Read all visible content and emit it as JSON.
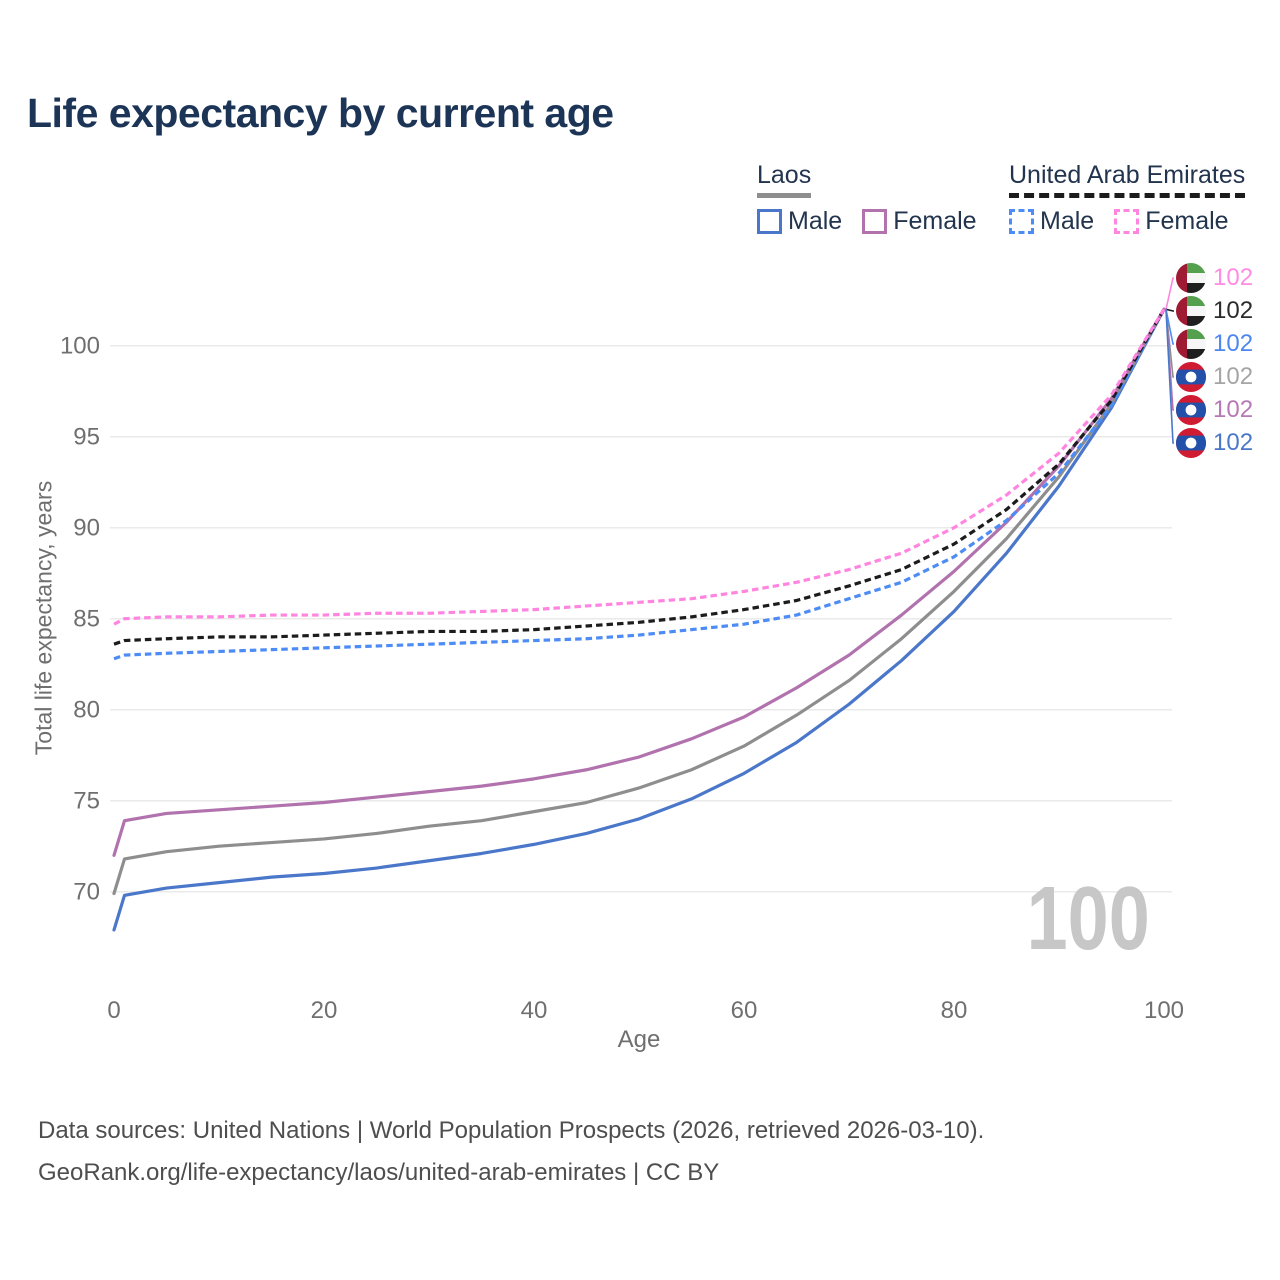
{
  "title": "Life expectancy by current age",
  "legend": {
    "groups": [
      {
        "id": "laos",
        "title": "Laos",
        "underline_color": "#8e8e8e",
        "underline_style": "solid",
        "items": [
          {
            "label": "Male",
            "color": "#4a77c9",
            "style": "solid"
          },
          {
            "label": "Female",
            "color": "#b172ae",
            "style": "solid"
          }
        ]
      },
      {
        "id": "uae",
        "title": "United Arab Emirates",
        "underline_color": "#1c1c1c",
        "underline_style": "dashed",
        "items": [
          {
            "label": "Male",
            "color": "#4d8bf5",
            "style": "dashed"
          },
          {
            "label": "Female",
            "color": "#ff85e0",
            "style": "dashed"
          }
        ]
      }
    ]
  },
  "chart_data": {
    "type": "line",
    "title": "Life expectancy by current age",
    "xlabel": "Age",
    "ylabel": "Total life expectancy, years",
    "x_ticks": [
      0,
      20,
      40,
      60,
      80,
      100
    ],
    "y_ticks": [
      70,
      75,
      80,
      85,
      90,
      95,
      100
    ],
    "xlim": [
      0,
      100
    ],
    "ylim": [
      66,
      103
    ],
    "grid": "horizontal",
    "legend_position": "top-right",
    "hover_age_label": "100",
    "ages": [
      0,
      1,
      5,
      10,
      15,
      20,
      25,
      30,
      35,
      40,
      45,
      50,
      55,
      60,
      65,
      70,
      75,
      80,
      85,
      90,
      95,
      100
    ],
    "series": [
      {
        "id": "laos-male",
        "name": "Laos Male",
        "country": "Laos",
        "sex": "Male",
        "color": "#4a77c9",
        "dash": false,
        "values": [
          67.9,
          69.8,
          70.2,
          70.5,
          70.8,
          71.0,
          71.3,
          71.7,
          72.1,
          72.6,
          73.2,
          74.0,
          75.1,
          76.5,
          78.2,
          80.3,
          82.7,
          85.4,
          88.6,
          92.3,
          96.6,
          102
        ]
      },
      {
        "id": "laos-both",
        "name": "Laos Both sexes",
        "country": "Laos",
        "sex": "Both sexes",
        "color": "#8e8e8e",
        "dash": false,
        "values": [
          69.9,
          71.8,
          72.2,
          72.5,
          72.7,
          72.9,
          73.2,
          73.6,
          73.9,
          74.4,
          74.9,
          75.7,
          76.7,
          78.0,
          79.7,
          81.6,
          83.9,
          86.5,
          89.4,
          92.8,
          96.8,
          102
        ]
      },
      {
        "id": "laos-female",
        "name": "Laos Female",
        "country": "Laos",
        "sex": "Female",
        "color": "#b172ae",
        "dash": false,
        "values": [
          72.0,
          73.9,
          74.3,
          74.5,
          74.7,
          74.9,
          75.2,
          75.5,
          75.8,
          76.2,
          76.7,
          77.4,
          78.4,
          79.6,
          81.2,
          83.0,
          85.2,
          87.6,
          90.3,
          93.4,
          97.1,
          102
        ]
      },
      {
        "id": "uae-male",
        "name": "United Arab Emirates Male",
        "country": "United Arab Emirates",
        "sex": "Male",
        "color": "#4d8bf5",
        "dash": true,
        "values": [
          82.8,
          83.0,
          83.1,
          83.2,
          83.3,
          83.4,
          83.5,
          83.6,
          83.7,
          83.8,
          83.9,
          84.1,
          84.4,
          84.7,
          85.2,
          86.1,
          87.0,
          88.4,
          90.4,
          93.0,
          96.7,
          102
        ]
      },
      {
        "id": "uae-both",
        "name": "United Arab Emirates Both sexes",
        "country": "United Arab Emirates",
        "sex": "Both sexes",
        "color": "#1c1c1c",
        "dash": true,
        "values": [
          83.6,
          83.8,
          83.9,
          84.0,
          84.0,
          84.1,
          84.2,
          84.3,
          84.3,
          84.4,
          84.6,
          84.8,
          85.1,
          85.5,
          86.0,
          86.8,
          87.7,
          89.1,
          91.0,
          93.5,
          97.0,
          102
        ]
      },
      {
        "id": "uae-female",
        "name": "United Arab Emirates Female",
        "country": "United Arab Emirates",
        "sex": "Female",
        "color": "#ff85e0",
        "dash": true,
        "values": [
          84.7,
          85.0,
          85.1,
          85.1,
          85.2,
          85.2,
          85.3,
          85.3,
          85.4,
          85.5,
          85.7,
          85.9,
          86.1,
          86.5,
          87.0,
          87.7,
          88.6,
          90.0,
          91.8,
          94.1,
          97.3,
          102
        ]
      }
    ],
    "end_labels": [
      {
        "series": "uae-female",
        "flag": "uae",
        "value": "102",
        "text_color": "#ff8ce2"
      },
      {
        "series": "uae-both",
        "flag": "uae",
        "value": "102",
        "text_color": "#2b2b2b"
      },
      {
        "series": "uae-male",
        "flag": "uae",
        "value": "102",
        "text_color": "#4c86f0"
      },
      {
        "series": "laos-both",
        "flag": "laos",
        "value": "102",
        "text_color": "#a5a5a5"
      },
      {
        "series": "laos-female",
        "flag": "laos",
        "value": "102",
        "text_color": "#b678b6"
      },
      {
        "series": "laos-male",
        "flag": "laos",
        "value": "102",
        "text_color": "#4a77c9"
      }
    ]
  },
  "colors": {
    "title_text": "#1c3557",
    "legend_text": "#22344e",
    "axis_text": "#6f6f6f",
    "grid": "#eaeaea",
    "watermark": "#c7c7c7",
    "footer_text": "#4e4e4e",
    "flags": {
      "uae": {
        "red": "#9e1b33",
        "green": "#55a04e",
        "white": "#f6f6f6",
        "black": "#1f1f1f"
      },
      "laos": {
        "red": "#d01c33",
        "blue": "#2350a9",
        "white": "#ffffff"
      }
    }
  },
  "footer": {
    "line1": "Data sources: United Nations | World Population Prospects (2026, retrieved 2026-03-10).",
    "line2": "GeoRank.org/life-expectancy/laos/united-arab-emirates | CC BY"
  }
}
